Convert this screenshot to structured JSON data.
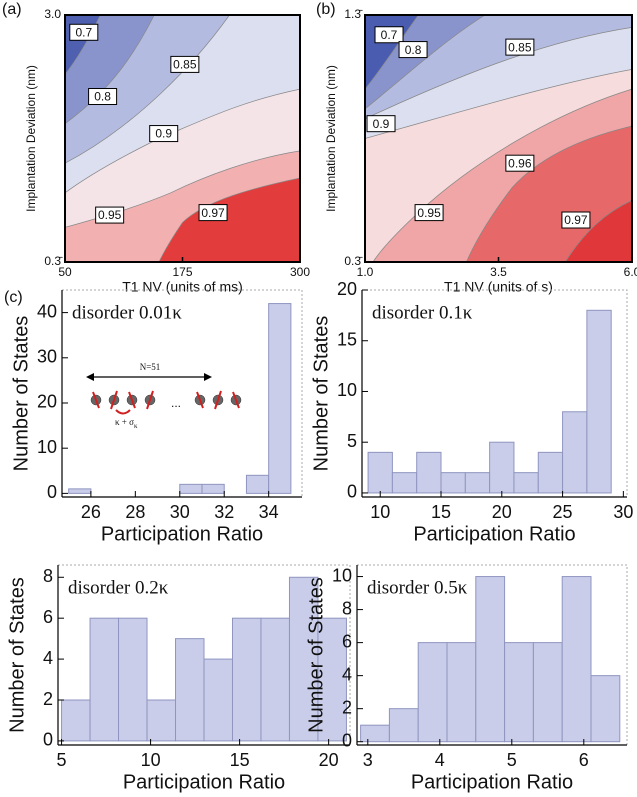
{
  "chart_data": [
    {
      "type": "contour",
      "panel": "(a)",
      "x_label": "T1 NV (units of ms)",
      "y_label": "Implantation Deviation (nm)",
      "xlim": [
        50,
        300
      ],
      "xticks": [
        50,
        175,
        300
      ],
      "ylim": [
        0.3333,
        3
      ],
      "yticks": [
        {
          "value": 0.3333,
          "label": "0.3̄"
        },
        {
          "value": 3,
          "label": "3.0"
        }
      ],
      "levels": [
        0.7,
        0.8,
        0.85,
        0.9,
        0.95,
        0.97
      ],
      "base_color": "#4f60b0",
      "level_colors": [
        "#8a94cc",
        "#b4bbe0",
        "#dcdff0",
        "#f4e4e8",
        "#f2b0b0",
        "#e23c3c"
      ]
    },
    {
      "type": "contour",
      "panel": "(b)",
      "x_label": "T1 NV (units of s)",
      "y_label": "Implantation Deviation (nm)",
      "xlim": [
        1,
        6
      ],
      "xticks": [
        {
          "value": 1,
          "label": "1.0"
        },
        3.5,
        {
          "value": 6,
          "label": "6.0"
        }
      ],
      "ylim": [
        0.3333,
        1.3333
      ],
      "yticks": [
        {
          "value": 0.3333,
          "label": "0.3̄"
        },
        {
          "value": 1.3333,
          "label": "1.3̄"
        }
      ],
      "levels": [
        0.7,
        0.8,
        0.85,
        0.9,
        0.95,
        0.96,
        0.97
      ],
      "base_color": "#4a5cb0",
      "level_colors": [
        "#8a94cc",
        "#b4bbe0",
        "#dcdff0",
        "#f6dcdc",
        "#f0a6a6",
        "#e66868",
        "#e0383a"
      ]
    },
    {
      "type": "histogram",
      "panel": "(c)",
      "label": "disorder 0.01κ",
      "x_label": "Participation Ratio",
      "y_label": "Number of States",
      "bins": [
        25,
        26,
        27,
        28,
        29,
        30,
        31,
        32,
        33,
        34,
        35
      ],
      "values": [
        1,
        0,
        0,
        0,
        0,
        2,
        2,
        0,
        4,
        42
      ],
      "color": "#c9cde9",
      "xlim": [
        24.7,
        35.5
      ],
      "xticks": [
        26,
        28,
        30,
        32,
        34
      ],
      "ylim": [
        -0.8,
        45
      ],
      "yticks": [
        0,
        10,
        20,
        30,
        40
      ],
      "inset": {
        "size": "N=51",
        "dots": "...",
        "coupling": "κ + σ",
        "coupling_sub": "κ"
      }
    },
    {
      "type": "histogram",
      "label": "disorder 0.1κ",
      "x_label": "Participation Ratio",
      "y_label": "Number of States",
      "bins": [
        9,
        11,
        13,
        15,
        17,
        19,
        21,
        23,
        25,
        27,
        29
      ],
      "values": [
        4,
        2,
        4,
        2,
        2,
        5,
        2,
        4,
        8,
        18
      ],
      "color": "#c9cde9",
      "xlim": [
        8.5,
        30.3
      ],
      "xticks": [
        10,
        15,
        20,
        25,
        30
      ],
      "ylim": [
        -0.4,
        20
      ],
      "yticks": [
        0,
        5,
        10,
        15,
        20
      ]
    },
    {
      "type": "histogram",
      "label": "disorder 0.2κ",
      "x_label": "Participation Ratio",
      "y_label": "Number of States",
      "bins": [
        5,
        6.6,
        8.2,
        9.8,
        11.4,
        13,
        14.6,
        16.2,
        17.8,
        19.4,
        21
      ],
      "values": [
        2,
        6,
        6,
        2,
        5,
        4,
        6,
        6,
        8,
        6
      ],
      "color": "#c9cde9",
      "xlim": [
        4.8,
        21.2
      ],
      "xticks": [
        5,
        10,
        15,
        20
      ],
      "ylim": [
        -0.2,
        8.6
      ],
      "yticks": [
        0,
        2,
        4,
        6,
        8
      ]
    },
    {
      "type": "histogram",
      "label": "disorder 0.5κ",
      "x_label": "Participation Ratio",
      "y_label": "Number of States",
      "bins": [
        2.9,
        3.3,
        3.7,
        4.1,
        4.5,
        4.9,
        5.3,
        5.7,
        6.1,
        6.5
      ],
      "values": [
        1,
        2,
        6,
        6,
        10,
        6,
        6,
        10,
        4
      ],
      "color": "#c9cde9",
      "xlim": [
        2.85,
        6.6
      ],
      "xticks": [
        3,
        4,
        5,
        6
      ],
      "ylim": [
        -0.2,
        10.7
      ],
      "yticks": [
        0,
        2,
        4,
        6,
        8,
        10
      ]
    }
  ]
}
